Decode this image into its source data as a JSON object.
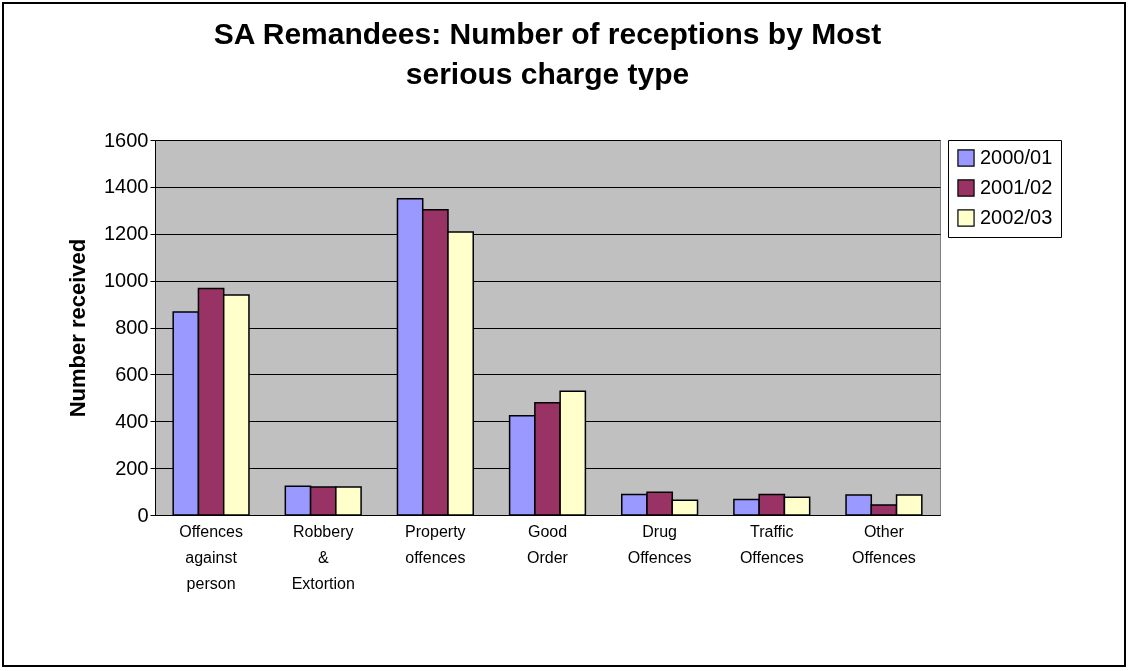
{
  "chart_data": {
    "type": "bar",
    "title": "SA Remandees: Number of receptions by Most serious charge type",
    "ylabel": "Number received",
    "categories": [
      "Offences against person",
      "Robbery & Extortion",
      "Property offences",
      "Good Order",
      "Drug Offences",
      "Traffic Offences",
      "Other Offences"
    ],
    "series": [
      {
        "name": "2000/01",
        "color": "#9999ff",
        "values": [
          866,
          123,
          1349,
          424,
          87,
          66,
          85
        ]
      },
      {
        "name": "2001/02",
        "color": "#993366",
        "values": [
          966,
          119,
          1302,
          479,
          97,
          87,
          43
        ]
      },
      {
        "name": "2002/03",
        "color": "#ffffcc",
        "values": [
          939,
          119,
          1207,
          528,
          63,
          76,
          85
        ]
      }
    ],
    "ylim": [
      0,
      1600
    ],
    "yticks": [
      0,
      200,
      400,
      600,
      800,
      {
        "value": 1000,
        "label": "1000"
      },
      {
        "value": 1200,
        "label": "1200"
      },
      {
        "value": 1400,
        "label": "1400"
      },
      {
        "value": 1600,
        "label": "1600"
      }
    ],
    "grid": "y",
    "legend": "right"
  }
}
